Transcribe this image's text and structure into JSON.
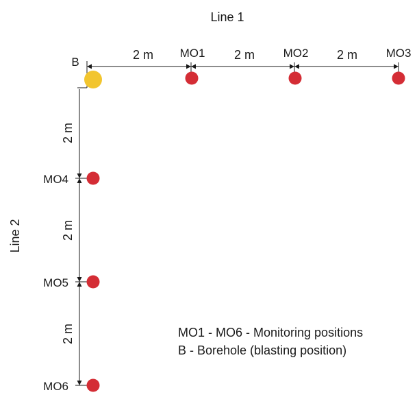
{
  "line1_label": "Line 1",
  "line2_label": "Line 2",
  "borehole": {
    "label": "B",
    "color": "#f2c52e"
  },
  "monitor_color": "#d42d35",
  "monitors": [
    {
      "label": "MO1"
    },
    {
      "label": "MO2"
    },
    {
      "label": "MO3"
    },
    {
      "label": "MO4"
    },
    {
      "label": "MO5"
    },
    {
      "label": "MO6"
    }
  ],
  "spacing_label": "2 m",
  "legend": [
    "MO1 - MO6 - Monitoring positions",
    "B - Borehole (blasting position)"
  ]
}
